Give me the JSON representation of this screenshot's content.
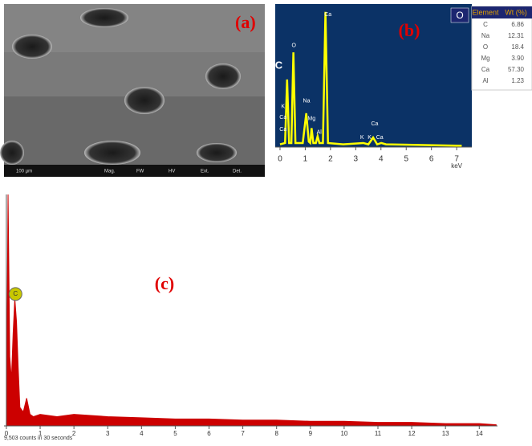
{
  "image_a": {
    "label": "(a)",
    "info_bar": [
      "100 µm",
      "Mag.",
      "FW",
      "HV",
      "Ext.",
      "Det."
    ]
  },
  "chart_data": [
    {
      "type": "line",
      "label": "(b)",
      "color": "#ffff00",
      "background": "#0b3266",
      "x": [
        0,
        0.2,
        0.28,
        0.36,
        0.45,
        0.53,
        0.61,
        0.9,
        1.04,
        1.14,
        1.2,
        1.25,
        1.32,
        1.42,
        1.49,
        1.56,
        1.7,
        1.8,
        1.9,
        2.5,
        3.3,
        3.5,
        3.69,
        3.85,
        4.01,
        4.2,
        7.2
      ],
      "values": [
        2,
        3,
        50,
        3,
        3,
        70,
        3,
        3,
        25,
        4,
        3,
        14,
        3,
        3,
        8,
        3,
        3,
        100,
        3,
        2,
        3,
        2,
        7,
        2,
        3,
        2,
        1
      ],
      "xlim": [
        -0.19,
        7.6
      ],
      "ylim": [
        0,
        104
      ],
      "xticks": [
        0,
        1,
        2,
        3,
        4,
        5,
        6,
        7
      ],
      "x_label": "keV",
      "badge": "O",
      "annotations": [
        {
          "text": "C",
          "x": -0.05,
          "y": 60
        },
        {
          "text": "O",
          "x": 0.55,
          "y": 75
        },
        {
          "text": "Ca",
          "x": 1.9,
          "y": 98
        },
        {
          "text": "K",
          "x": 0.12,
          "y": 30
        },
        {
          "text": "Ca",
          "x": 0.12,
          "y": 22
        },
        {
          "text": "Ca",
          "x": 0.12,
          "y": 13
        },
        {
          "text": "Na",
          "x": 1.05,
          "y": 34
        },
        {
          "text": "Mg",
          "x": 1.25,
          "y": 21
        },
        {
          "text": "Al",
          "x": 1.55,
          "y": 11
        },
        {
          "text": "Ca",
          "x": 3.75,
          "y": 17
        },
        {
          "text": "K",
          "x": 3.25,
          "y": 7
        },
        {
          "text": "K",
          "x": 3.55,
          "y": 7
        },
        {
          "text": "Ca",
          "x": 3.95,
          "y": 7
        }
      ]
    },
    {
      "type": "area",
      "label": "(c)",
      "color": "#cc0000",
      "x": [
        0,
        0.05,
        0.1,
        0.15,
        0.2,
        0.25,
        0.3,
        0.35,
        0.4,
        0.5,
        0.6,
        0.7,
        0.8,
        1,
        1.5,
        2,
        3,
        4,
        5,
        6,
        7,
        8,
        9,
        10,
        11,
        12,
        13,
        14,
        14.5
      ],
      "values": [
        0,
        100,
        30,
        20,
        40,
        55,
        45,
        25,
        8,
        6,
        12,
        5,
        4,
        5,
        4,
        5,
        4,
        3.5,
        3,
        3,
        2.5,
        2.5,
        2,
        2,
        1.5,
        1.5,
        1,
        1,
        0.5
      ],
      "xlim": [
        -0.07,
        14.54
      ],
      "ylim": [
        0,
        100
      ],
      "xticks": [
        0,
        1,
        2,
        3,
        4,
        5,
        6,
        7,
        8,
        9,
        10,
        11,
        12,
        13,
        14
      ],
      "footnote": "9,503 counts in 30 seconds",
      "marker_label": "C",
      "marker_x": 0.27,
      "marker_y": 57
    }
  ],
  "table": {
    "header": [
      "Element",
      "Wt (%)"
    ],
    "rows": [
      [
        "C",
        "6.86"
      ],
      [
        "Na",
        "12.31"
      ],
      [
        "O",
        "18.4"
      ],
      [
        "Mg",
        "3.90"
      ],
      [
        "Ca",
        "57.30"
      ],
      [
        "Al",
        "1.23"
      ]
    ]
  }
}
